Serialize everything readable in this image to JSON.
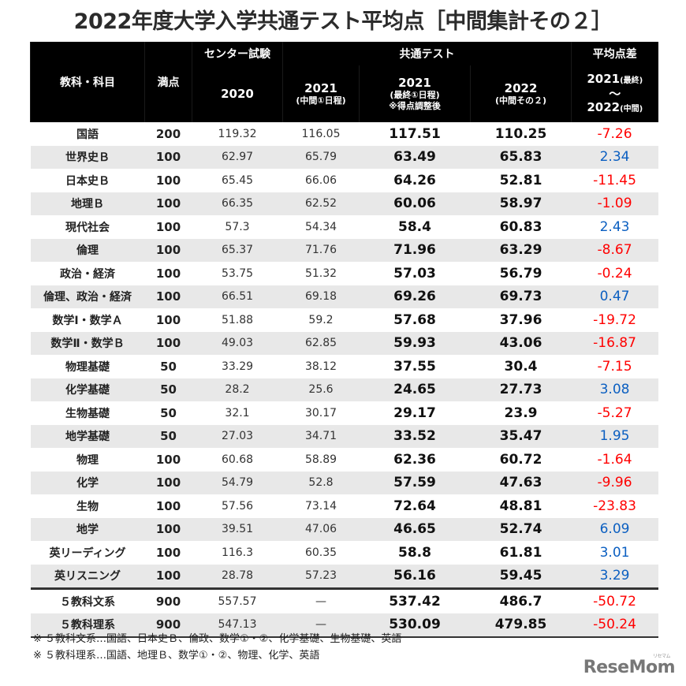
{
  "title": "2022年度大学入学共通テスト平均点［中間集計その２］",
  "header": {
    "subject": "教科・科目",
    "full_score": "満点",
    "group_center": "センター試験",
    "group_common": "共通テスト",
    "group_diff": "平均点差",
    "col_2020": "2020",
    "col_2021_mid_year": "2021",
    "col_2021_mid_sub": "(中間①日程)",
    "col_2021_final_year": "2021",
    "col_2021_final_sub1": "(最終①日程)",
    "col_2021_final_sub2": "※得点調整後",
    "col_2022_year": "2022",
    "col_2022_sub": "(中間その２)",
    "col_diff_line1": "2021",
    "col_diff_line1_sub": "(最終)",
    "col_diff_line2": "～",
    "col_diff_line3": "2022",
    "col_diff_line3_sub": "(中間)"
  },
  "rows": [
    {
      "subject": "国語",
      "full": "200",
      "y2020": "119.32",
      "y2021mid": "116.05",
      "y2021final": "117.51",
      "y2022": "110.25",
      "diff": "-7.26",
      "sign": "neg"
    },
    {
      "subject": "世界史Ｂ",
      "full": "100",
      "y2020": "62.97",
      "y2021mid": "65.79",
      "y2021final": "63.49",
      "y2022": "65.83",
      "diff": "2.34",
      "sign": "pos"
    },
    {
      "subject": "日本史Ｂ",
      "full": "100",
      "y2020": "65.45",
      "y2021mid": "66.06",
      "y2021final": "64.26",
      "y2022": "52.81",
      "diff": "-11.45",
      "sign": "neg"
    },
    {
      "subject": "地理Ｂ",
      "full": "100",
      "y2020": "66.35",
      "y2021mid": "62.52",
      "y2021final": "60.06",
      "y2022": "58.97",
      "diff": "-1.09",
      "sign": "neg"
    },
    {
      "subject": "現代社会",
      "full": "100",
      "y2020": "57.3",
      "y2021mid": "54.34",
      "y2021final": "58.4",
      "y2022": "60.83",
      "diff": "2.43",
      "sign": "pos"
    },
    {
      "subject": "倫理",
      "full": "100",
      "y2020": "65.37",
      "y2021mid": "71.76",
      "y2021final": "71.96",
      "y2022": "63.29",
      "diff": "-8.67",
      "sign": "neg"
    },
    {
      "subject": "政治・経済",
      "full": "100",
      "y2020": "53.75",
      "y2021mid": "51.32",
      "y2021final": "57.03",
      "y2022": "56.79",
      "diff": "-0.24",
      "sign": "neg"
    },
    {
      "subject": "倫理、政治・経済",
      "full": "100",
      "y2020": "66.51",
      "y2021mid": "69.18",
      "y2021final": "69.26",
      "y2022": "69.73",
      "diff": "0.47",
      "sign": "pos"
    },
    {
      "subject": "数学Ⅰ・数学Ａ",
      "full": "100",
      "y2020": "51.88",
      "y2021mid": "59.2",
      "y2021final": "57.68",
      "y2022": "37.96",
      "diff": "-19.72",
      "sign": "neg"
    },
    {
      "subject": "数学Ⅱ・数学Ｂ",
      "full": "100",
      "y2020": "49.03",
      "y2021mid": "62.85",
      "y2021final": "59.93",
      "y2022": "43.06",
      "diff": "-16.87",
      "sign": "neg"
    },
    {
      "subject": "物理基礎",
      "full": "50",
      "y2020": "33.29",
      "y2021mid": "38.12",
      "y2021final": "37.55",
      "y2022": "30.4",
      "diff": "-7.15",
      "sign": "neg"
    },
    {
      "subject": "化学基礎",
      "full": "50",
      "y2020": "28.2",
      "y2021mid": "25.6",
      "y2021final": "24.65",
      "y2022": "27.73",
      "diff": "3.08",
      "sign": "pos"
    },
    {
      "subject": "生物基礎",
      "full": "50",
      "y2020": "32.1",
      "y2021mid": "30.17",
      "y2021final": "29.17",
      "y2022": "23.9",
      "diff": "-5.27",
      "sign": "neg"
    },
    {
      "subject": "地学基礎",
      "full": "50",
      "y2020": "27.03",
      "y2021mid": "34.71",
      "y2021final": "33.52",
      "y2022": "35.47",
      "diff": "1.95",
      "sign": "pos"
    },
    {
      "subject": "物理",
      "full": "100",
      "y2020": "60.68",
      "y2021mid": "58.89",
      "y2021final": "62.36",
      "y2022": "60.72",
      "diff": "-1.64",
      "sign": "neg"
    },
    {
      "subject": "化学",
      "full": "100",
      "y2020": "54.79",
      "y2021mid": "52.8",
      "y2021final": "57.59",
      "y2022": "47.63",
      "diff": "-9.96",
      "sign": "neg"
    },
    {
      "subject": "生物",
      "full": "100",
      "y2020": "57.56",
      "y2021mid": "73.14",
      "y2021final": "72.64",
      "y2022": "48.81",
      "diff": "-23.83",
      "sign": "neg"
    },
    {
      "subject": "地学",
      "full": "100",
      "y2020": "39.51",
      "y2021mid": "47.06",
      "y2021final": "46.65",
      "y2022": "52.74",
      "diff": "6.09",
      "sign": "pos"
    },
    {
      "subject": "英リーディング",
      "full": "100",
      "y2020": "116.3",
      "y2021mid": "60.35",
      "y2021final": "58.8",
      "y2022": "61.81",
      "diff": "3.01",
      "sign": "pos"
    },
    {
      "subject": "英リスニング",
      "full": "100",
      "y2020": "28.78",
      "y2021mid": "57.23",
      "y2021final": "56.16",
      "y2022": "59.45",
      "diff": "3.29",
      "sign": "pos"
    },
    {
      "subject": "５教科文系",
      "full": "900",
      "y2020": "557.57",
      "y2021mid": "—",
      "y2021final": "537.42",
      "y2022": "486.7",
      "diff": "-50.72",
      "sign": "neg"
    },
    {
      "subject": "５教科理系",
      "full": "900",
      "y2020": "547.13",
      "y2021mid": "—",
      "y2021final": "530.09",
      "y2022": "479.85",
      "diff": "-50.24",
      "sign": "neg"
    }
  ],
  "notes": [
    "※ ５教科文系…国語、日本史Ｂ、倫政、数学①・②、化学基礎、生物基礎、英語",
    "※ ５教科理系…国語、地理Ｂ、数学①・②、物理、化学、英語"
  ],
  "logo": {
    "text": "ReseMom",
    "kana": "リセマム"
  },
  "colors": {
    "negative": "#ff0000",
    "positive": "#0b5fc1",
    "header_bg": "#000000",
    "stripe": "#e8e8e8"
  }
}
